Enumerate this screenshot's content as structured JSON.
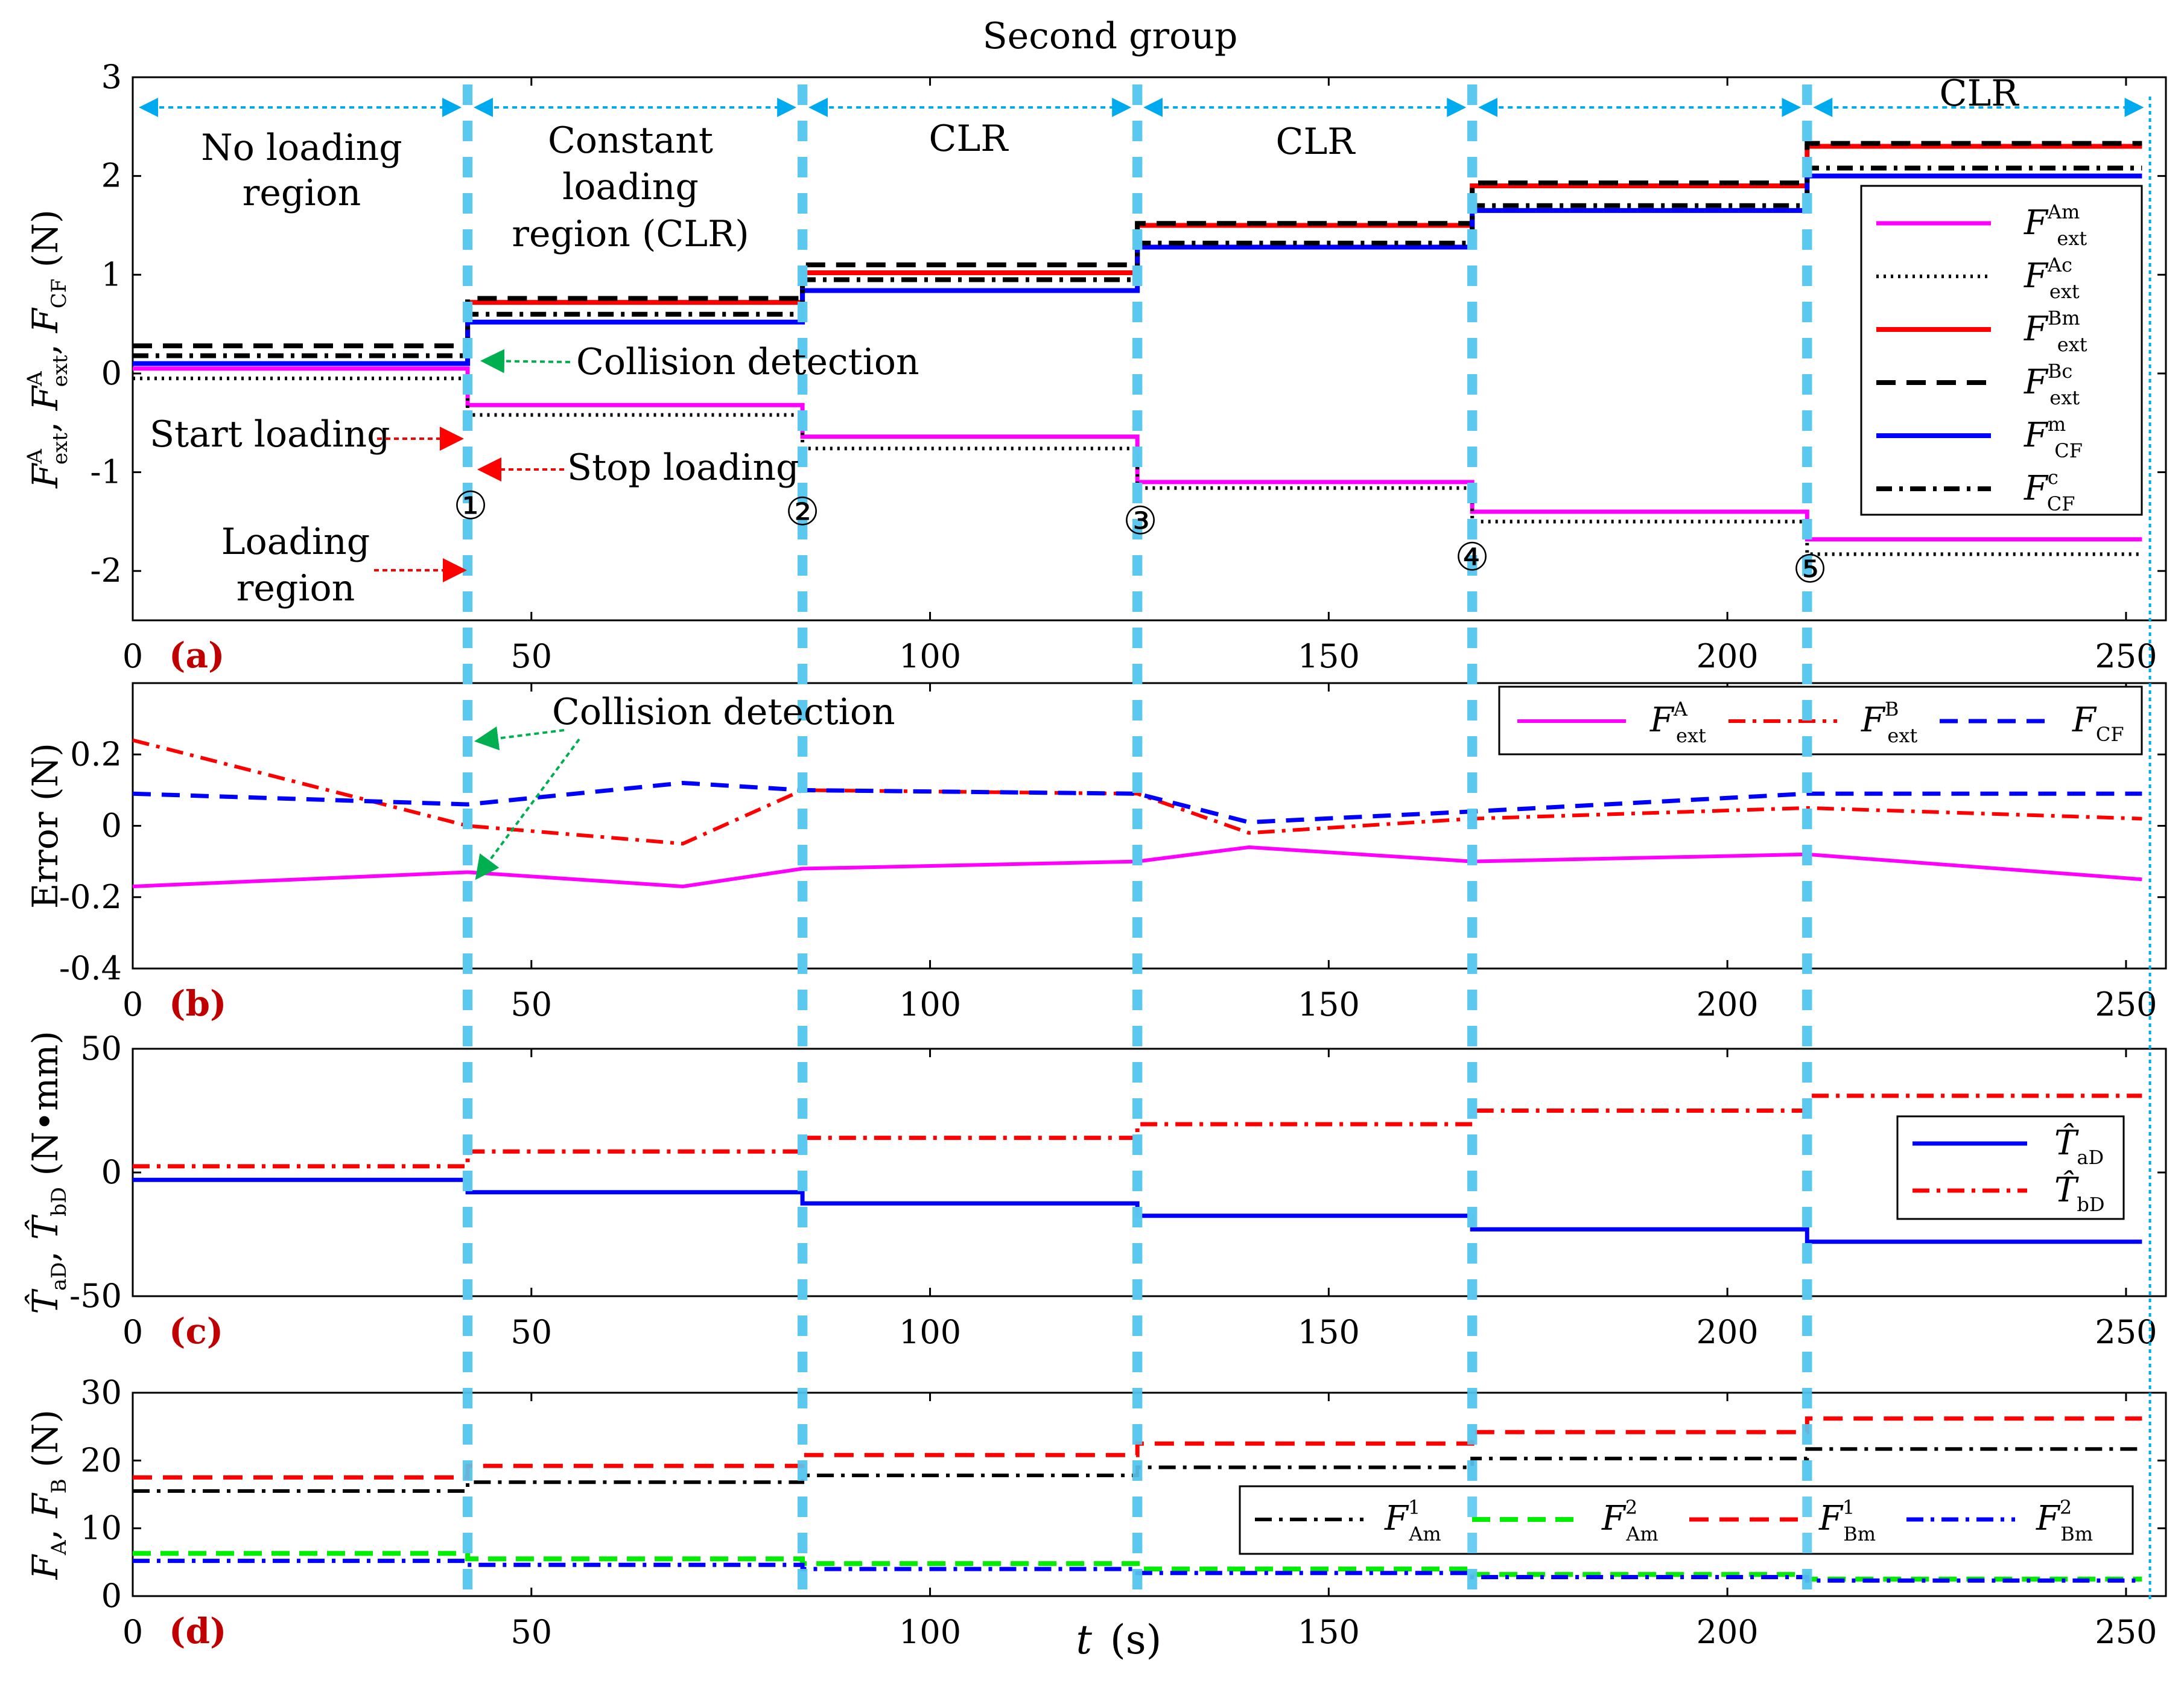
{
  "figure": {
    "title": "Second group",
    "xlabel_t": "t",
    "xlabel_unit": "(s)",
    "phase_lines_x": [
      42,
      84,
      126,
      168,
      210
    ],
    "end_line_x": 253,
    "markers": [
      "①",
      "②",
      "③",
      "④",
      "⑤"
    ],
    "colors": {
      "magenta": "#ff00ff",
      "red": "#ff0000",
      "blue": "#0000ff",
      "black": "#000000",
      "green": "#00ee00",
      "cyan": "#5bc8f0",
      "darkred": "#c00000",
      "arrow_red": "#ff0000",
      "arrow_green": "#00b050",
      "arrow_blue": "#00aaee"
    }
  },
  "chart_data": [
    {
      "id": "a",
      "type": "line",
      "panel_label": "(a)",
      "ylabel_parts": [
        "F",
        "A",
        "ext",
        ", ",
        "F",
        "A",
        "ext",
        ", ",
        "F",
        "CF",
        " (N)"
      ],
      "xlim": [
        0,
        255
      ],
      "ylim": [
        -2.5,
        3
      ],
      "xticks": [
        0,
        50,
        100,
        150,
        200,
        250
      ],
      "yticks": [
        -2,
        -1,
        0,
        1,
        2,
        3
      ],
      "regions": [
        "No loading region",
        "Constant loading region (CLR)",
        "CLR",
        "CLR",
        "",
        "CLR"
      ],
      "annotations": [
        "Collision detection",
        "Start loading",
        "Stop loading",
        "Loading region"
      ],
      "legend": [
        {
          "sym": "F",
          "sup": "Am",
          "sub": "ext"
        },
        {
          "sym": "F",
          "sup": "Ac",
          "sub": "ext"
        },
        {
          "sym": "F",
          "sup": "Bm",
          "sub": "ext"
        },
        {
          "sym": "F",
          "sup": "Bc",
          "sub": "ext"
        },
        {
          "sym": "F",
          "sup": "m",
          "sub": "CF"
        },
        {
          "sym": "F",
          "sup": "c",
          "sub": "CF"
        }
      ],
      "series": [
        {
          "name": "F_ext^Am",
          "values": [
            0.05,
            -0.32,
            -0.28,
            -0.64,
            -1.1,
            -1.4,
            -1.68
          ]
        },
        {
          "name": "F_ext^Ac",
          "values": [
            -0.05,
            -0.42,
            -0.42,
            -0.76,
            -1.16,
            -1.5,
            -1.83
          ]
        },
        {
          "name": "F_ext^Bm",
          "values": [
            0.1,
            0.72,
            0.72,
            1.02,
            1.5,
            1.9,
            2.3
          ]
        },
        {
          "name": "F_ext^Bc",
          "values": [
            0.28,
            0.76,
            0.76,
            1.1,
            1.52,
            1.93,
            2.33
          ]
        },
        {
          "name": "F_CF^m",
          "values": [
            0.1,
            0.52,
            0.48,
            0.84,
            1.28,
            1.65,
            2.0
          ]
        },
        {
          "name": "F_CF^c",
          "values": [
            0.18,
            0.6,
            0.58,
            0.95,
            1.32,
            1.7,
            2.08
          ]
        }
      ]
    },
    {
      "id": "b",
      "type": "line",
      "panel_label": "(b)",
      "ylabel": "Error (N)",
      "xlim": [
        0,
        255
      ],
      "ylim": [
        -0.4,
        0.4
      ],
      "xticks": [
        0,
        50,
        100,
        150,
        200,
        250
      ],
      "yticks": [
        -0.4,
        -0.2,
        0,
        0.2
      ],
      "annotations": [
        "Collision detection"
      ],
      "legend": [
        {
          "sym": "F",
          "sup": "A",
          "sub": "ext"
        },
        {
          "sym": "F",
          "sup": "B",
          "sub": "ext"
        },
        {
          "sym": "F",
          "sup": "",
          "sub": "CF"
        }
      ],
      "series": [
        {
          "name": "F_ext^A",
          "values": [
            -0.17,
            -0.13,
            -0.17,
            -0.12,
            -0.1,
            -0.06,
            -0.1,
            -0.08,
            -0.15
          ]
        },
        {
          "name": "F_ext^B",
          "values": [
            0.24,
            0.0,
            -0.05,
            0.1,
            0.09,
            -0.02,
            0.02,
            0.05,
            0.02
          ]
        },
        {
          "name": "F_CF",
          "values": [
            0.09,
            0.06,
            0.12,
            0.1,
            0.09,
            0.01,
            0.04,
            0.09,
            0.09
          ]
        }
      ]
    },
    {
      "id": "c",
      "type": "line",
      "panel_label": "(c)",
      "ylabel_parts": [
        "T̂",
        "aD",
        ", ",
        "T̂",
        "bD",
        " (N•mm)"
      ],
      "xlim": [
        0,
        255
      ],
      "ylim": [
        -50,
        50
      ],
      "xticks": [
        0,
        50,
        100,
        150,
        200,
        250
      ],
      "yticks": [
        -50,
        0,
        50
      ],
      "legend": [
        {
          "sym": "T̂",
          "sup": "",
          "sub": "aD"
        },
        {
          "sym": "T̂",
          "sup": "",
          "sub": "bD"
        }
      ],
      "series": [
        {
          "name": "T_aD",
          "values": [
            -3,
            -8,
            -12.5,
            -17.5,
            -23,
            -28
          ]
        },
        {
          "name": "T_bD",
          "values": [
            2.5,
            8.5,
            14,
            19.5,
            25,
            31
          ]
        }
      ]
    },
    {
      "id": "d",
      "type": "line",
      "panel_label": "(d)",
      "ylabel_parts": [
        "F",
        "A",
        ", ",
        "F",
        "B",
        " (N)"
      ],
      "xlim": [
        0,
        255
      ],
      "ylim": [
        0,
        30
      ],
      "xticks": [
        0,
        50,
        100,
        150,
        200,
        250
      ],
      "yticks": [
        0,
        10,
        20,
        30
      ],
      "legend": [
        {
          "sym": "F",
          "sup": "1",
          "sub": "Am"
        },
        {
          "sym": "F",
          "sup": "2",
          "sub": "Am"
        },
        {
          "sym": "F",
          "sup": "1",
          "sub": "Bm"
        },
        {
          "sym": "F",
          "sup": "2",
          "sub": "Bm"
        }
      ],
      "series": [
        {
          "name": "F_Am^1",
          "values": [
            15.5,
            16.8,
            17.8,
            19.0,
            20.3,
            21.7
          ]
        },
        {
          "name": "F_Am^2",
          "values": [
            6.3,
            5.5,
            4.8,
            4.0,
            3.2,
            2.5
          ]
        },
        {
          "name": "F_Bm^1",
          "values": [
            17.5,
            19.2,
            20.8,
            22.5,
            24.2,
            26.2
          ]
        },
        {
          "name": "F_Bm^2",
          "values": [
            5.2,
            4.6,
            4.0,
            3.4,
            2.8,
            2.3
          ]
        }
      ]
    }
  ]
}
